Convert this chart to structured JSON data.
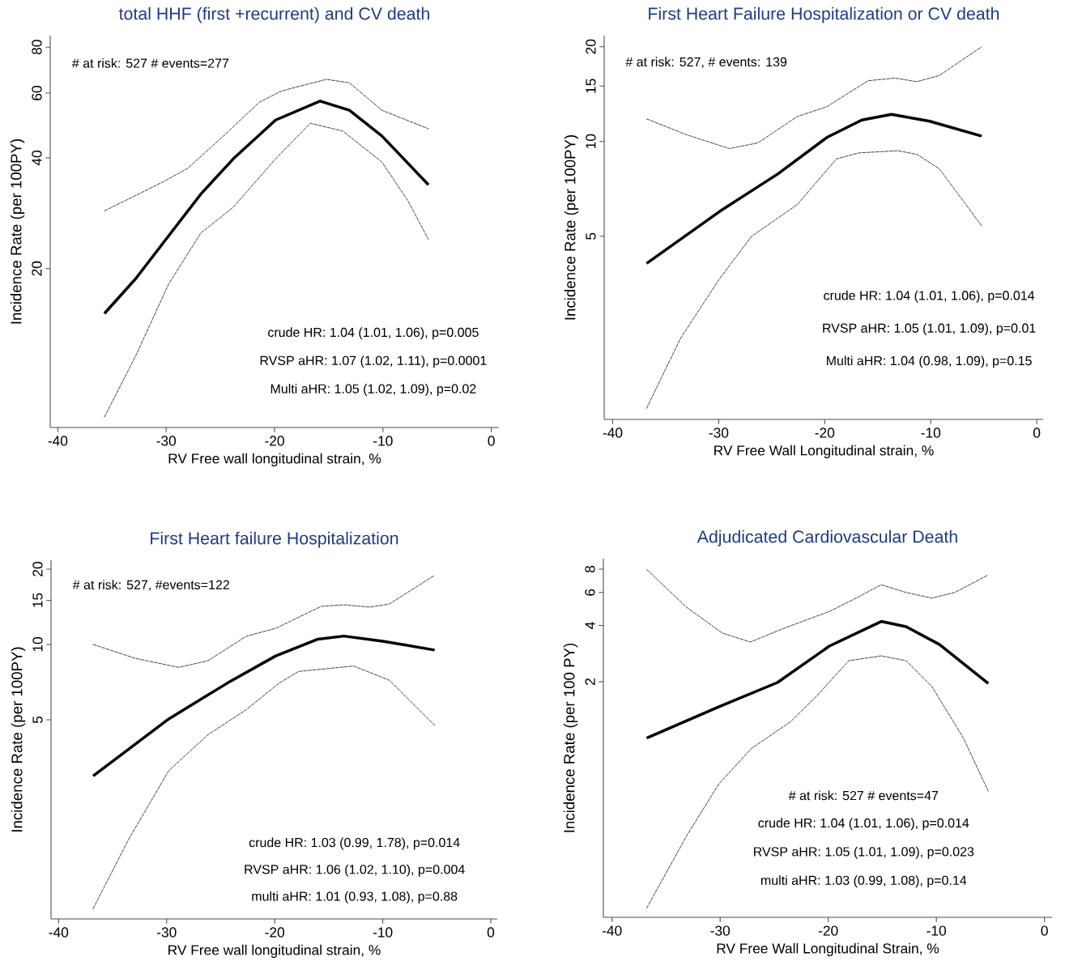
{
  "chart_data": [
    {
      "type": "line",
      "title": "total HHF (first +recurrent)  and CV death",
      "xlabel": "RV Free wall longitudinal strain, %",
      "ylabel": "Incidence Rate (per 100PY)",
      "log": "y",
      "xlim": [
        -40.7,
        0.7
      ],
      "ylim": [
        7.4,
        86
      ],
      "xticks": [
        -40,
        -30,
        -20,
        -10,
        0
      ],
      "yticks": [
        20,
        40,
        60,
        80
      ],
      "annotations": [
        "# at risk: 527 # events=277",
        "crude HR: 1.04 (1.01, 1.06), p=0.005",
        "RVSP aHR: 1.07 (1.02, 1.11), p=0.0001",
        "Multi aHR: 1.05 (1.02, 1.09), p=0.02"
      ],
      "series": [
        {
          "color": "#000000",
          "line_style": "solid",
          "x": [
            -35.7,
            -32.8,
            -29.8,
            -26.8,
            -23.8,
            -19.9,
            -15.8,
            -13.1,
            -10.1,
            -5.8
          ],
          "values": [
            15.1,
            18.8,
            24.5,
            31.9,
            39.8,
            50.7,
            57.1,
            53.9,
            45.9,
            33.8
          ]
        },
        {
          "color": "#000000",
          "line_style": "dashed",
          "x": [
            -35.7,
            -30.4,
            -28.0,
            -24.4,
            -21.4,
            -19.3,
            -15.2,
            -13.1,
            -10.1,
            -5.8
          ],
          "values": [
            28.7,
            34.3,
            37.5,
            46.8,
            56.7,
            60.9,
            65.4,
            64.0,
            53.9,
            48.0
          ]
        },
        {
          "color": "#000000",
          "line_style": "dashed",
          "x": [
            -35.7,
            -32.8,
            -29.8,
            -26.8,
            -23.8,
            -19.9,
            -16.7,
            -13.7,
            -10.1,
            -7.7,
            -5.8
          ],
          "values": [
            7.9,
            11.6,
            18.1,
            25.0,
            29.4,
            39.8,
            49.7,
            47.3,
            39.0,
            30.6,
            24.0
          ]
        }
      ]
    },
    {
      "type": "line",
      "title": "First Heart Failure Hospitalization or CV death",
      "xlabel": "RV Free Wall Longitudinal strain, %",
      "ylabel": "Incidence Rate (per 100PY)",
      "log": "y",
      "xlim": [
        -40.8,
        0.6
      ],
      "ylim": [
        1.31,
        21.7
      ],
      "xticks": [
        -40,
        -30,
        -20,
        -10,
        0
      ],
      "yticks": [
        5,
        10,
        15,
        20
      ],
      "annotations": [
        "# at risk: 527,   # events: 139",
        "crude HR: 1.04 (1.01, 1.06), p=0.014",
        "RVSP aHR: 1.05 (1.01, 1.09), p=0.01",
        "Multi aHR: 1.04 (0.98, 1.09), p=0.15"
      ],
      "series": [
        {
          "color": "#000000",
          "line_style": "solid",
          "x": [
            -36.8,
            -29.9,
            -24.4,
            -19.8,
            -16.5,
            -13.7,
            -10.1,
            -5.2
          ],
          "values": [
            4.1,
            6.0,
            7.9,
            10.3,
            11.7,
            12.2,
            11.6,
            10.4
          ]
        },
        {
          "color": "#000000",
          "line_style": "dashed",
          "x": [
            -36.8,
            -33.0,
            -29.0,
            -26.3,
            -22.6,
            -19.8,
            -15.9,
            -13.4,
            -11.3,
            -9.2,
            -5.2
          ],
          "values": [
            11.8,
            10.5,
            9.5,
            9.9,
            12.0,
            12.9,
            15.6,
            15.9,
            15.5,
            16.2,
            20.0
          ]
        },
        {
          "color": "#000000",
          "line_style": "dashed",
          "x": [
            -36.8,
            -33.6,
            -29.9,
            -26.9,
            -22.6,
            -18.9,
            -16.8,
            -13.1,
            -11.3,
            -9.2,
            -5.2
          ],
          "values": [
            1.42,
            2.37,
            3.67,
            5.0,
            6.3,
            8.8,
            9.2,
            9.35,
            9.1,
            8.2,
            5.4
          ]
        }
      ]
    },
    {
      "type": "line",
      "title": "First Heart failure Hospitalization",
      "xlabel": "RV Free wall longitudinal strain, %",
      "ylabel": "Incidence Rate (per 100PY)",
      "log": "y",
      "xlim": [
        -40.7,
        0.6
      ],
      "ylim": [
        0.8,
        21.7
      ],
      "xticks": [
        -40,
        -30,
        -20,
        -10,
        0
      ],
      "yticks": [
        5,
        10,
        15,
        20
      ],
      "annotations": [
        "# at risk: 527, #events=122",
        "crude HR: 1.03 (0.99, 1.78), p=0.014",
        "RVSP aHR: 1.06 (1.02, 1.10), p=0.004",
        "multi aHR: 1.01 (0.93, 1.08), p=0.88"
      ],
      "series": [
        {
          "color": "#000000",
          "line_style": "solid",
          "x": [
            -36.8,
            -29.8,
            -24.4,
            -19.9,
            -16.0,
            -13.6,
            -10.0,
            -5.2
          ],
          "values": [
            2.98,
            5.04,
            7.0,
            9.0,
            10.5,
            10.8,
            10.3,
            9.5
          ]
        },
        {
          "color": "#000000",
          "line_style": "dashed",
          "x": [
            -36.8,
            -32.9,
            -28.9,
            -26.2,
            -22.6,
            -19.9,
            -15.7,
            -13.6,
            -11.2,
            -9.4,
            -5.2
          ],
          "values": [
            10.0,
            8.8,
            8.1,
            8.6,
            10.8,
            11.6,
            14.2,
            14.4,
            14.1,
            14.5,
            18.9
          ]
        },
        {
          "color": "#000000",
          "line_style": "dashed",
          "x": [
            -36.8,
            -33.5,
            -29.8,
            -26.2,
            -22.6,
            -19.6,
            -17.8,
            -12.7,
            -9.4,
            -5.2
          ],
          "values": [
            0.88,
            1.67,
            3.13,
            4.35,
            5.5,
            7.0,
            7.8,
            8.2,
            7.2,
            4.75
          ]
        }
      ]
    },
    {
      "type": "line",
      "title": "Adjudicated Cardiovascular Death",
      "xlabel": "RV Free Wall Longitudinal Strain, %",
      "ylabel": "Incidence Rate (per 100 PY)",
      "log": "y",
      "xlim": [
        -40.8,
        0.7
      ],
      "ylim": [
        0.11,
        9.1
      ],
      "xticks": [
        -40,
        -30,
        -20,
        -10,
        0
      ],
      "yticks": [
        2,
        4,
        6,
        8
      ],
      "annotations": [
        "# at risk: 527 # events=47",
        "crude HR: 1.04 (1.01, 1.06), p=0.014",
        "RVSP aHR: 1.05 (1.01, 1.09), p=0.023",
        "multi aHR: 1.03 (0.99, 1.08), p=0.14"
      ],
      "series": [
        {
          "color": "#000000",
          "line_style": "solid",
          "x": [
            -36.8,
            -30.1,
            -24.7,
            -19.9,
            -15.1,
            -12.8,
            -9.7,
            -5.2
          ],
          "values": [
            1.0,
            1.47,
            1.98,
            3.1,
            4.2,
            3.94,
            3.16,
            1.96
          ]
        },
        {
          "color": "#000000",
          "line_style": "dashed",
          "x": [
            -36.8,
            -33.1,
            -29.8,
            -27.2,
            -24.1,
            -19.9,
            -17.5,
            -15.1,
            -12.8,
            -10.4,
            -8.3,
            -5.2
          ],
          "values": [
            7.97,
            5.0,
            3.64,
            3.26,
            3.86,
            4.75,
            5.57,
            6.6,
            6.0,
            5.6,
            6.0,
            7.45
          ]
        },
        {
          "color": "#000000",
          "line_style": "dashed",
          "x": [
            -36.8,
            -33.1,
            -30.1,
            -27.1,
            -23.5,
            -21.1,
            -18.1,
            -15.1,
            -12.8,
            -10.4,
            -7.5,
            -5.2
          ],
          "values": [
            0.123,
            0.3,
            0.57,
            0.88,
            1.22,
            1.67,
            2.59,
            2.75,
            2.59,
            1.88,
            1.0,
            0.52
          ]
        }
      ]
    }
  ]
}
